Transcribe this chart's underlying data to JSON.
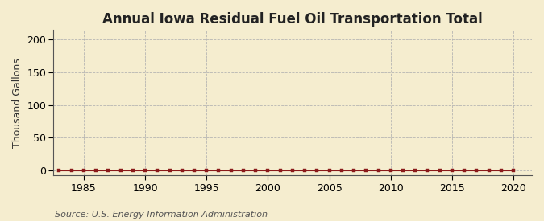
{
  "title": "Annual Iowa Residual Fuel Oil Transportation Total",
  "ylabel": "Thousand Gallons",
  "source_text": "Source: U.S. Energy Information Administration",
  "x_ticks": [
    1985,
    1990,
    1995,
    2000,
    2005,
    2010,
    2015,
    2020
  ],
  "y_ticks": [
    0,
    50,
    100,
    150,
    200
  ],
  "ylim": [
    -8,
    215
  ],
  "xlim": [
    1982.5,
    2021.5
  ],
  "background_color": "#f5edcf",
  "plot_bg_color": "#f5edcf",
  "line_color": "#8b1a1a",
  "marker_color": "#8b1a1a",
  "grid_color": "#b0b0b0",
  "title_fontsize": 12,
  "label_fontsize": 9,
  "tick_fontsize": 9,
  "source_fontsize": 8,
  "data_x": [
    1983,
    1984,
    1985,
    1986,
    1987,
    1988,
    1989,
    1990,
    1991,
    1992,
    1993,
    1994,
    1995,
    1996,
    1997,
    1998,
    1999,
    2000,
    2001,
    2002,
    2003,
    2004,
    2005,
    2006,
    2007,
    2008,
    2009,
    2010,
    2011,
    2012,
    2013,
    2014,
    2015,
    2016,
    2017,
    2018,
    2019,
    2020
  ],
  "data_y": [
    0,
    0,
    0,
    0,
    0,
    0,
    0,
    0,
    0,
    0,
    0,
    0,
    0,
    0,
    0,
    0,
    0,
    0,
    0,
    0,
    0,
    0,
    0,
    0,
    0,
    0,
    0,
    0,
    0,
    0,
    0,
    0,
    0,
    0,
    0,
    0,
    0,
    0
  ]
}
